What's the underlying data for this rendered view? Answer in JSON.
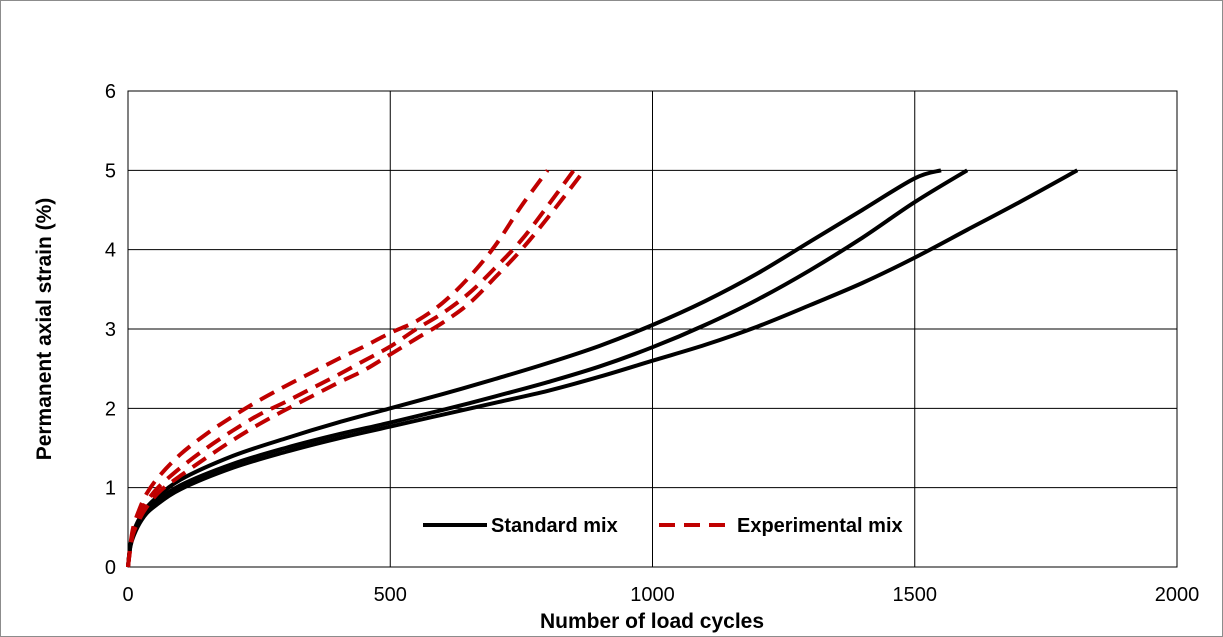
{
  "chart_data": {
    "type": "line",
    "title": "",
    "xlabel": "Number of load cycles",
    "ylabel": "Permanent axial strain (%)",
    "xlim": [
      0,
      2000
    ],
    "ylim": [
      0,
      6
    ],
    "x_ticks": [
      "0",
      "500",
      "1000",
      "1500",
      "2000"
    ],
    "y_ticks": [
      "0",
      "1",
      "2",
      "3",
      "4",
      "5",
      "6"
    ],
    "grid": true,
    "legend_position": "bottom-center",
    "legend": [
      "Standard mix",
      "Experimental mix"
    ],
    "colors": {
      "standard": "#000000",
      "experimental": "#c00000"
    },
    "series": [
      {
        "group": "Standard mix",
        "style": "solid",
        "x": [
          0,
          5,
          15,
          30,
          50,
          100,
          200,
          300,
          400,
          500,
          600,
          700,
          800,
          900,
          1000,
          1100,
          1200,
          1300,
          1400,
          1500,
          1550
        ],
        "y": [
          0,
          0.3,
          0.52,
          0.7,
          0.85,
          1.1,
          1.4,
          1.62,
          1.82,
          2.0,
          2.18,
          2.37,
          2.57,
          2.79,
          3.05,
          3.35,
          3.7,
          4.1,
          4.5,
          4.9,
          5.0
        ]
      },
      {
        "group": "Standard mix",
        "style": "solid",
        "x": [
          0,
          5,
          15,
          30,
          50,
          100,
          200,
          300,
          400,
          500,
          600,
          700,
          800,
          900,
          1000,
          1100,
          1200,
          1300,
          1400,
          1500,
          1600
        ],
        "y": [
          0,
          0.28,
          0.48,
          0.66,
          0.8,
          1.03,
          1.3,
          1.5,
          1.67,
          1.82,
          1.98,
          2.15,
          2.33,
          2.53,
          2.77,
          3.05,
          3.37,
          3.74,
          4.15,
          4.6,
          5.0
        ]
      },
      {
        "group": "Standard mix",
        "style": "solid",
        "x": [
          0,
          5,
          15,
          30,
          50,
          100,
          200,
          300,
          400,
          500,
          600,
          700,
          800,
          900,
          1000,
          1100,
          1200,
          1300,
          1400,
          1500,
          1600,
          1700,
          1810
        ],
        "y": [
          0,
          0.27,
          0.46,
          0.63,
          0.76,
          0.98,
          1.25,
          1.45,
          1.62,
          1.77,
          1.92,
          2.07,
          2.22,
          2.4,
          2.6,
          2.8,
          3.03,
          3.3,
          3.58,
          3.9,
          4.25,
          4.6,
          5.0
        ]
      },
      {
        "group": "Experimental mix",
        "style": "dashed",
        "x": [
          0,
          5,
          10,
          20,
          35,
          60,
          100,
          150,
          200,
          250,
          300,
          350,
          400,
          450,
          500,
          550,
          600,
          650,
          700,
          750,
          800
        ],
        "y": [
          0,
          0.3,
          0.5,
          0.7,
          0.92,
          1.15,
          1.42,
          1.68,
          1.9,
          2.1,
          2.28,
          2.45,
          2.62,
          2.78,
          2.95,
          3.1,
          3.33,
          3.65,
          4.05,
          4.55,
          5.0
        ]
      },
      {
        "group": "Experimental mix",
        "style": "dashed",
        "x": [
          0,
          5,
          10,
          20,
          35,
          60,
          100,
          150,
          200,
          250,
          300,
          350,
          400,
          450,
          500,
          550,
          600,
          650,
          700,
          750,
          800,
          850
        ],
        "y": [
          0,
          0.27,
          0.46,
          0.63,
          0.82,
          1.02,
          1.25,
          1.5,
          1.72,
          1.92,
          2.08,
          2.25,
          2.42,
          2.6,
          2.78,
          3.0,
          3.2,
          3.45,
          3.77,
          4.12,
          4.55,
          5.0
        ]
      },
      {
        "group": "Experimental mix",
        "style": "dashed",
        "x": [
          0,
          5,
          10,
          20,
          35,
          60,
          100,
          150,
          200,
          250,
          300,
          350,
          400,
          450,
          500,
          550,
          600,
          650,
          700,
          750,
          800,
          870
        ],
        "y": [
          0,
          0.25,
          0.42,
          0.58,
          0.75,
          0.95,
          1.15,
          1.38,
          1.6,
          1.8,
          1.98,
          2.15,
          2.32,
          2.48,
          2.68,
          2.88,
          3.08,
          3.32,
          3.65,
          4.0,
          4.4,
          5.0
        ]
      }
    ]
  }
}
